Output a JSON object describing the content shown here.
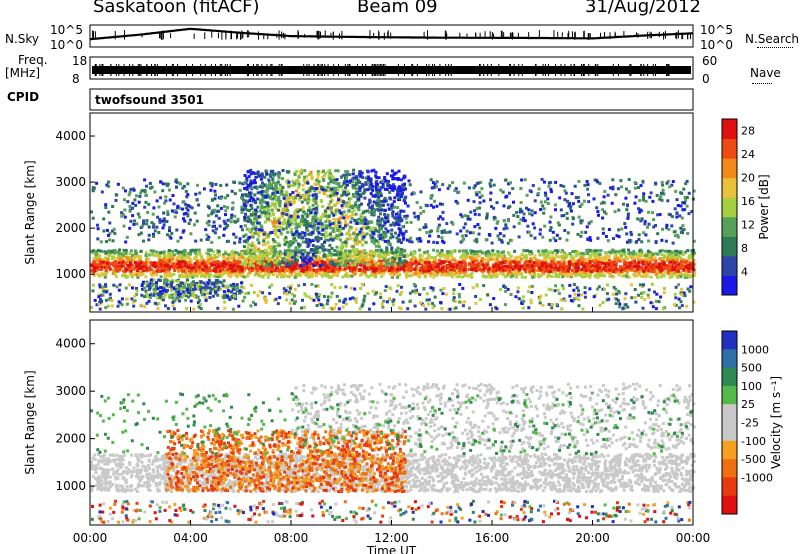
{
  "header": {
    "station": "Saskatoon (fitACF)",
    "beam": "Beam 09",
    "date": "31/Aug/2012"
  },
  "params": {
    "nsky_label": "N.Sky",
    "nsearch_label": "N.Search",
    "freq_label": "Freq.",
    "freq_unit": "[MHz]",
    "nave_label": "Nave",
    "cpid_label": "CPID",
    "cpid_value": "twofsound 3501",
    "noise_ticks": [
      "10^5",
      "10^0"
    ],
    "freq_ticks": [
      "18",
      "8"
    ],
    "nave_ticks": [
      "60",
      "0"
    ]
  },
  "colors": {
    "power": [
      "#1a1ae8",
      "#2b46a8",
      "#2e7a55",
      "#56a05a",
      "#a6d040",
      "#e9c13a",
      "#f28a1a",
      "#ee4a14",
      "#e01010"
    ],
    "velocity": [
      "#2030c0",
      "#2f6fa8",
      "#2f8a52",
      "#54b84a",
      "#c9c9c9",
      "#c9c9c9",
      "#f5a020",
      "#ef7010",
      "#e83a10",
      "#e01010"
    ],
    "ground_scatter": "#c9c9c9"
  },
  "chart_data": [
    {
      "type": "line",
      "title": "N.Sky / N.Search",
      "x": [
        "00:00",
        "02:00",
        "04:00",
        "06:00",
        "08:00",
        "10:00",
        "12:00",
        "14:00",
        "16:00",
        "18:00",
        "20:00",
        "22:00",
        "24:00"
      ],
      "series": [
        {
          "name": "N.Sky",
          "values": [
            50,
            700,
            20000,
            2000,
            300,
            200,
            150,
            120,
            110,
            100,
            80,
            400,
            1500
          ]
        }
      ],
      "yscale": "log",
      "ylim": [
        1,
        100000
      ]
    },
    {
      "type": "line",
      "title": "Freq. / Nave",
      "x": [
        "00:00",
        "06:00",
        "12:00",
        "18:00",
        "24:00"
      ],
      "series": [
        {
          "name": "Freq.",
          "values": [
            11,
            11,
            11,
            11,
            11
          ]
        }
      ],
      "ylim": [
        8,
        18
      ]
    },
    {
      "type": "heatmap",
      "xlabel": "Time UT",
      "ylabel": "Slant Range [km]",
      "xticks": [
        "00:00",
        "04:00",
        "08:00",
        "12:00",
        "16:00",
        "20:00",
        "00:00"
      ],
      "xlim_hours": [
        0,
        24
      ],
      "yticks": [
        1000,
        2000,
        3000,
        4000
      ],
      "ylim": [
        180,
        4500
      ],
      "colorbar": {
        "label": "Power [dB]",
        "ticks": [
          4,
          8,
          12,
          16,
          20,
          24,
          28
        ],
        "range": [
          0,
          30
        ]
      },
      "features": [
        {
          "name": "main scatter band",
          "time_hours": [
            0,
            24
          ],
          "range_km": [
            900,
            1600
          ],
          "peak_db": 30
        },
        {
          "name": "arc",
          "time_hours": [
            6,
            12.5
          ],
          "range_km": [
            1200,
            3300
          ],
          "peak_db": 25
        },
        {
          "name": "upper patches",
          "time_hours": [
            13,
            24
          ],
          "range_km": [
            1700,
            3100
          ],
          "peak_db": 12
        }
      ]
    },
    {
      "type": "heatmap",
      "xlabel": "Time UT",
      "ylabel": "Slant Range [km]",
      "xticks": [
        "00:00",
        "04:00",
        "08:00",
        "12:00",
        "16:00",
        "20:00",
        "00:00"
      ],
      "xlim_hours": [
        0,
        24
      ],
      "yticks": [
        1000,
        2000,
        3000,
        4000
      ],
      "ylim": [
        180,
        4500
      ],
      "colorbar": {
        "label": "Velocity [m s⁻¹]",
        "ticks": [
          1000,
          500,
          100,
          25,
          -25,
          -100,
          -500,
          -1000
        ]
      },
      "features": [
        {
          "name": "negative velocity region",
          "time_hours": [
            3,
            12.5
          ],
          "range_km": [
            900,
            2200
          ],
          "velocity_ms": -300
        },
        {
          "name": "ground scatter band",
          "time_hours": [
            0,
            24
          ],
          "range_km": [
            900,
            1700
          ],
          "velocity_ms": 0
        }
      ]
    }
  ]
}
